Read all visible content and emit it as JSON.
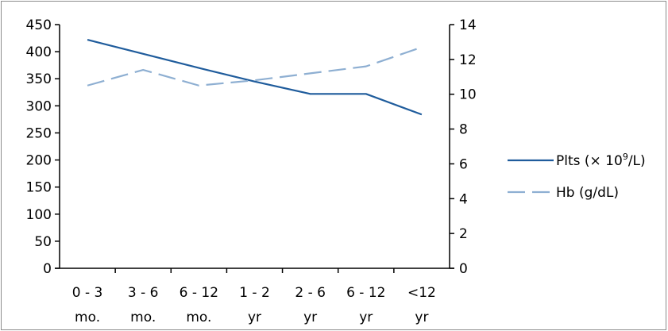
{
  "chart_data": {
    "type": "line",
    "categories": [
      [
        "0 - 3",
        "mo."
      ],
      [
        "3 - 6",
        "mo."
      ],
      [
        "6 - 12",
        "mo."
      ],
      [
        "1 - 2",
        "yr"
      ],
      [
        "2 - 6",
        "yr"
      ],
      [
        "6 - 12",
        "yr"
      ],
      [
        "<12",
        "yr"
      ]
    ],
    "y_left": {
      "ylim": [
        0,
        450
      ],
      "ticks": [
        0,
        50,
        100,
        150,
        200,
        250,
        300,
        350,
        400,
        450
      ]
    },
    "y_right": {
      "ylim": [
        0,
        14
      ],
      "ticks": [
        0,
        2,
        4,
        6,
        8,
        10,
        12,
        14
      ]
    },
    "series": [
      {
        "name": "Plts (× 10⁹/L)",
        "legend_base": "Plts (× 10",
        "legend_sup": "9",
        "legend_tail": "/L)",
        "axis": "left",
        "style": "solid",
        "color": "#1f5c9c",
        "values": [
          422,
          396,
          370,
          345,
          322,
          322,
          284
        ]
      },
      {
        "name": "Hb (g/dL)",
        "legend_base": "Hb (g/dL)",
        "axis": "right",
        "style": "dashed",
        "color": "#8eafd2",
        "values": [
          10.5,
          11.4,
          10.5,
          10.8,
          11.2,
          11.6,
          12.7
        ]
      }
    ],
    "grid": false,
    "legend_position": "right"
  }
}
